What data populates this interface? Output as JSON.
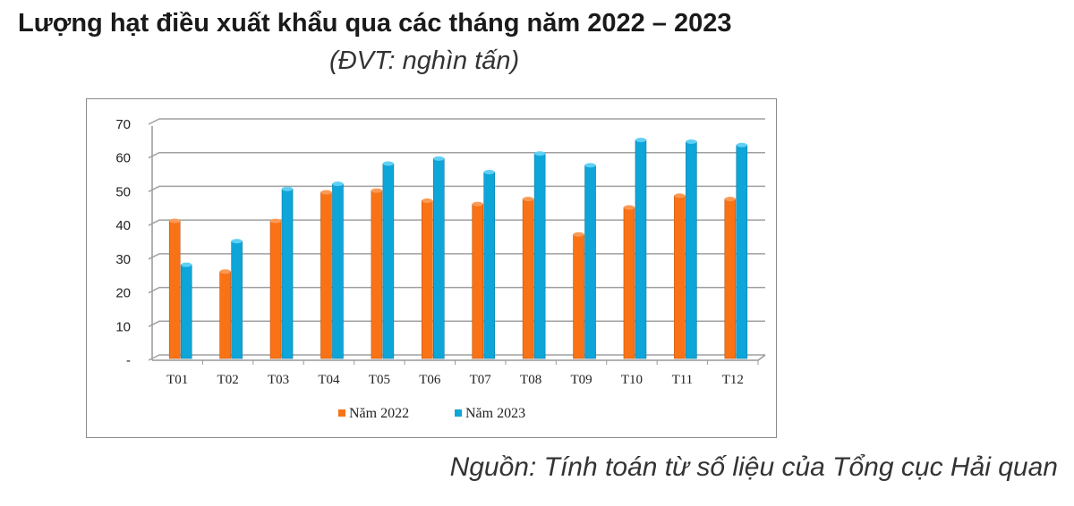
{
  "title": "Lượng hạt điều xuất khẩu qua các tháng năm 2022 – 2023",
  "subtitle": "(ĐVT: nghìn tấn)",
  "source": "Nguồn: Tính toán từ số liệu của Tổng cục Hải quan",
  "chart_data": {
    "type": "bar",
    "categories": [
      "T01",
      "T02",
      "T03",
      "T04",
      "T05",
      "T06",
      "T07",
      "T08",
      "T09",
      "T10",
      "T11",
      "T12"
    ],
    "series": [
      {
        "name": "Năm 2022",
        "color": "#f97316",
        "values": [
          40,
          25,
          40,
          48.5,
          49,
          46,
          45,
          46.5,
          36,
          44,
          47.5,
          46.5
        ]
      },
      {
        "name": "Năm 2023",
        "color": "#0ea5d8",
        "values": [
          27,
          34,
          49.5,
          51,
          57,
          58.5,
          54.5,
          60,
          56.5,
          64,
          63.5,
          62.5
        ]
      }
    ],
    "yticks": [
      "-",
      "10",
      "20",
      "30",
      "40",
      "50",
      "60",
      "70"
    ],
    "ylim": [
      0,
      70
    ],
    "grid": true,
    "legend": "bottom",
    "style": "3d-cylinder"
  }
}
